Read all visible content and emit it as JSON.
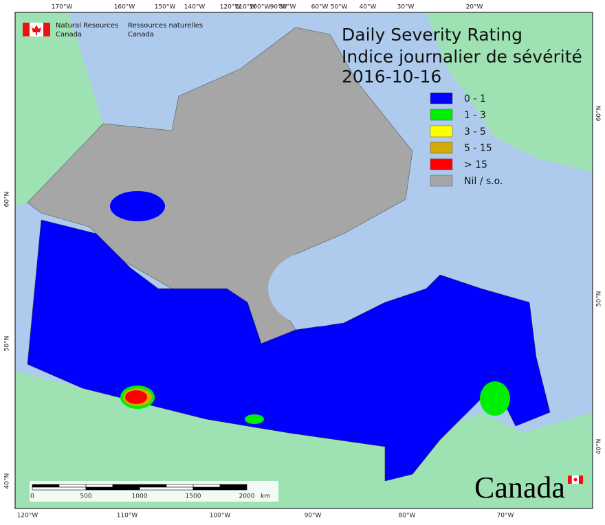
{
  "agency": {
    "en": [
      "Natural Resources",
      "Canada"
    ],
    "fr": [
      "Ressources naturelles",
      "Canada"
    ]
  },
  "title": {
    "en": "Daily Severity Rating",
    "fr": "Indice journalier de sévérité",
    "date": "2016-10-16"
  },
  "legend": [
    {
      "label": "0 - 1",
      "color": "#0000ff"
    },
    {
      "label": "1 - 3",
      "color": "#00ee00"
    },
    {
      "label": "3 - 5",
      "color": "#ffff00"
    },
    {
      "label": "5 - 15",
      "color": "#d4aa00"
    },
    {
      "label": "> 15",
      "color": "#ff0000"
    },
    {
      "label": "Nil / s.o.",
      "color": "#a6a6a6"
    }
  ],
  "top_longitudes": [
    "170°W",
    "160°W",
    "150°W",
    "140°W",
    "120°W",
    "110°W",
    "100°W",
    "90°W",
    "80°W",
    "60°W",
    "50°W",
    "40°W",
    "30°W",
    "20°W"
  ],
  "bottom_longitudes": [
    "120°W",
    "110°W",
    "100°W",
    "90°W",
    "80°W",
    "70°W"
  ],
  "left_latitudes": [
    "60°N",
    "50°N",
    "40°N"
  ],
  "right_latitudes": [
    "60°N",
    "50°N",
    "40°N"
  ],
  "scale_bar": {
    "labels": [
      "0",
      "500",
      "1000",
      "1500",
      "2000"
    ],
    "unit": "km"
  },
  "wordmark": "Canada"
}
